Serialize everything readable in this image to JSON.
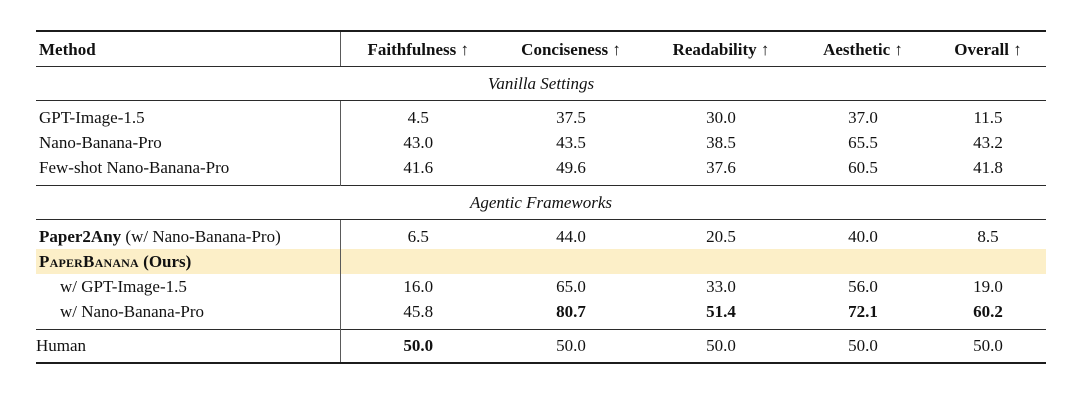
{
  "table": {
    "highlight_color": "#FCEFC8",
    "columns": [
      {
        "label": "Method"
      },
      {
        "label": "Faithfulness ↑"
      },
      {
        "label": "Conciseness ↑"
      },
      {
        "label": "Readability ↑"
      },
      {
        "label": "Aesthetic ↑"
      },
      {
        "label": "Overall ↑"
      }
    ],
    "sections": [
      {
        "header": "Vanilla Settings",
        "rows": [
          {
            "method": [
              {
                "text": "GPT-Image-1.5"
              }
            ],
            "values": [
              "4.5",
              "37.5",
              "30.0",
              "37.0",
              "11.5"
            ]
          },
          {
            "method": [
              {
                "text": "Nano-Banana-Pro"
              }
            ],
            "values": [
              "43.0",
              "43.5",
              "38.5",
              "65.5",
              "43.2"
            ]
          },
          {
            "method": [
              {
                "text": "Few-shot Nano-Banana-Pro"
              }
            ],
            "values": [
              "41.6",
              "49.6",
              "37.6",
              "60.5",
              "41.8"
            ]
          }
        ]
      },
      {
        "header": "Agentic Frameworks",
        "rows": [
          {
            "method": [
              {
                "text": "Paper2Any",
                "bold": true
              },
              {
                "text": " (w/ Nano-Banana-Pro)"
              }
            ],
            "values": [
              "6.5",
              "44.0",
              "20.5",
              "40.0",
              "8.5"
            ]
          },
          {
            "method": [
              {
                "text": "PaperBanana",
                "bold": true,
                "smallcaps": true
              },
              {
                "text": " (Ours)",
                "bold": true
              }
            ],
            "values": [
              "",
              "",
              "",
              "",
              ""
            ],
            "highlight": true
          },
          {
            "method": [
              {
                "text": "w/ GPT-Image-1.5"
              }
            ],
            "indent": true,
            "values": [
              "16.0",
              "65.0",
              "33.0",
              "56.0",
              "19.0"
            ]
          },
          {
            "method": [
              {
                "text": "w/ Nano-Banana-Pro"
              }
            ],
            "indent": true,
            "values": [
              "45.8",
              "80.7",
              "51.4",
              "72.1",
              "60.2"
            ],
            "bold_values": [
              false,
              true,
              true,
              true,
              true
            ]
          }
        ]
      },
      {
        "header": null,
        "human": true,
        "rows": [
          {
            "method": [
              {
                "text": "Human"
              }
            ],
            "values": [
              "50.0",
              "50.0",
              "50.0",
              "50.0",
              "50.0"
            ],
            "bold_values": [
              true,
              false,
              false,
              false,
              false
            ]
          }
        ]
      }
    ]
  }
}
